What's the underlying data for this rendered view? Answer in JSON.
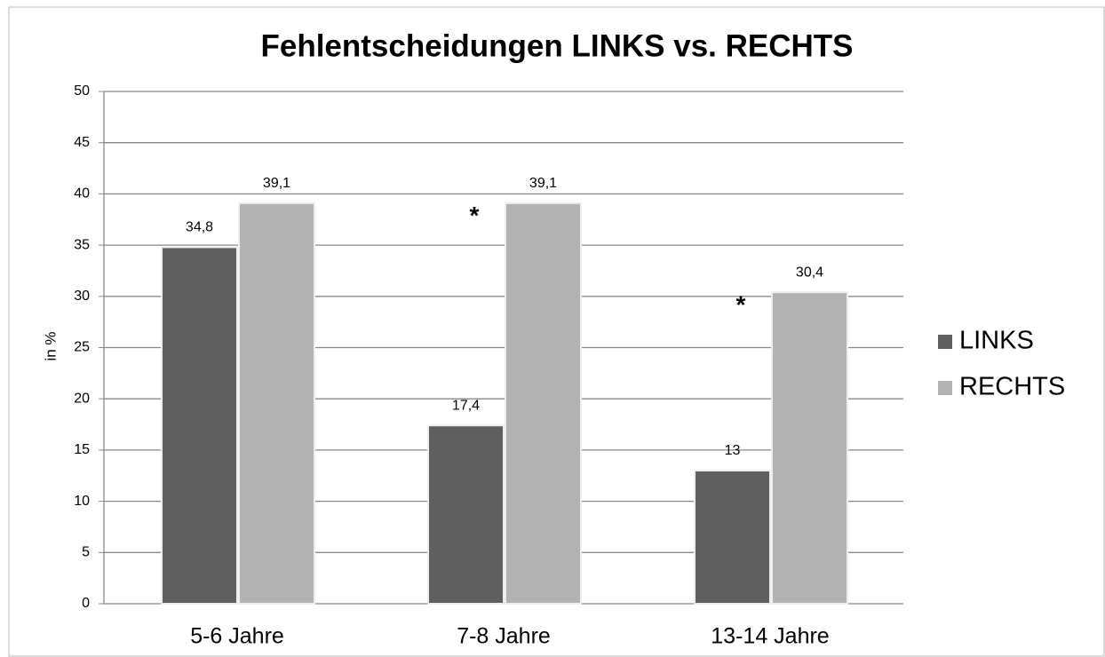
{
  "chart_data": {
    "type": "bar",
    "title": "Fehlentscheidungen LINKS vs. RECHTS",
    "y_label": "in %",
    "categories": [
      "5-6 Jahre",
      "7-8 Jahre",
      "13-14 Jahre"
    ],
    "series": [
      {
        "name": "LINKS",
        "color": "#5f5f5f",
        "values": [
          34.8,
          17.4,
          13
        ],
        "value_labels": [
          "34,8",
          "17,4",
          "13"
        ]
      },
      {
        "name": "RECHTS",
        "color": "#b2b2b2",
        "values": [
          39.1,
          39.1,
          30.4
        ],
        "value_labels": [
          "39,1",
          "39,1",
          "30,4"
        ]
      }
    ],
    "annotations": [
      "*",
      "*"
    ],
    "ylim": [
      0,
      50
    ],
    "yticks": [
      0,
      5,
      10,
      15,
      20,
      25,
      30,
      35,
      40,
      45,
      50
    ],
    "grid": true,
    "legend": "right"
  }
}
